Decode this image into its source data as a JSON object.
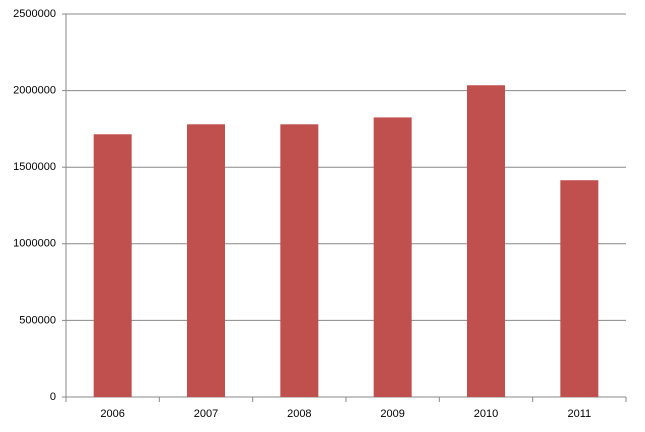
{
  "chart_data": {
    "type": "bar",
    "categories": [
      "2006",
      "2007",
      "2008",
      "2009",
      "2010",
      "2011"
    ],
    "values": [
      1715000,
      1780000,
      1780000,
      1825000,
      2035000,
      1415000
    ],
    "color": "#c0504d",
    "ylim": [
      0,
      2500000
    ],
    "yticks": [
      0,
      500000,
      1000000,
      1500000,
      2000000,
      2500000
    ],
    "grid": true
  }
}
